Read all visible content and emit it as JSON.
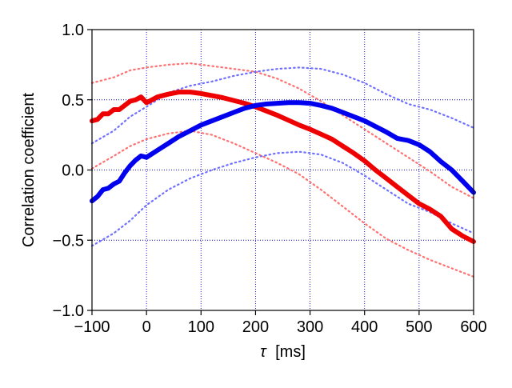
{
  "chart_data": {
    "type": "line",
    "xlabel_symbol": "τ",
    "xlabel_unit": "[ms]",
    "ylabel": "Correlation coefficient",
    "xlim": [
      -100,
      600
    ],
    "ylim": [
      -1.0,
      1.0
    ],
    "xticks": [
      -100,
      0,
      100,
      200,
      300,
      400,
      500,
      600
    ],
    "xtick_labels": [
      "−100",
      "0",
      "100",
      "200",
      "300",
      "400",
      "500",
      "600"
    ],
    "yticks": [
      -1.0,
      -0.5,
      0.0,
      0.5,
      1.0
    ],
    "ytick_labels": [
      "−1.0",
      "−0.5",
      "0.0",
      "0.5",
      "1.0"
    ],
    "grid": true,
    "grid_style": "dotted",
    "grid_color": "#0000cc",
    "legend": "none",
    "series": [
      {
        "color": "#ee0000",
        "style": "solid",
        "points": [
          [
            -100,
            0.35
          ],
          [
            -90,
            0.36
          ],
          [
            -80,
            0.4
          ],
          [
            -70,
            0.4
          ],
          [
            -60,
            0.43
          ],
          [
            -50,
            0.43
          ],
          [
            -40,
            0.46
          ],
          [
            -30,
            0.49
          ],
          [
            -20,
            0.5
          ],
          [
            -10,
            0.52
          ],
          [
            0,
            0.48
          ],
          [
            10,
            0.5
          ],
          [
            20,
            0.52
          ],
          [
            40,
            0.54
          ],
          [
            60,
            0.555
          ],
          [
            80,
            0.555
          ],
          [
            100,
            0.545
          ],
          [
            120,
            0.53
          ],
          [
            140,
            0.515
          ],
          [
            160,
            0.495
          ],
          [
            180,
            0.475
          ],
          [
            200,
            0.45
          ],
          [
            220,
            0.42
          ],
          [
            240,
            0.39
          ],
          [
            260,
            0.355
          ],
          [
            280,
            0.32
          ],
          [
            300,
            0.29
          ],
          [
            320,
            0.255
          ],
          [
            340,
            0.22
          ],
          [
            360,
            0.17
          ],
          [
            380,
            0.12
          ],
          [
            400,
            0.065
          ],
          [
            420,
            0.0
          ],
          [
            440,
            -0.06
          ],
          [
            460,
            -0.12
          ],
          [
            480,
            -0.18
          ],
          [
            500,
            -0.24
          ],
          [
            520,
            -0.28
          ],
          [
            540,
            -0.33
          ],
          [
            560,
            -0.42
          ],
          [
            580,
            -0.47
          ],
          [
            600,
            -0.51
          ]
        ]
      },
      {
        "color": "#0000ee",
        "style": "solid",
        "points": [
          [
            -100,
            -0.22
          ],
          [
            -90,
            -0.19
          ],
          [
            -80,
            -0.14
          ],
          [
            -70,
            -0.13
          ],
          [
            -60,
            -0.1
          ],
          [
            -50,
            -0.08
          ],
          [
            -40,
            -0.02
          ],
          [
            -30,
            0.03
          ],
          [
            -20,
            0.07
          ],
          [
            -10,
            0.1
          ],
          [
            0,
            0.09
          ],
          [
            20,
            0.14
          ],
          [
            40,
            0.19
          ],
          [
            60,
            0.24
          ],
          [
            80,
            0.28
          ],
          [
            100,
            0.32
          ],
          [
            120,
            0.35
          ],
          [
            140,
            0.38
          ],
          [
            160,
            0.41
          ],
          [
            180,
            0.44
          ],
          [
            200,
            0.46
          ],
          [
            220,
            0.47
          ],
          [
            240,
            0.475
          ],
          [
            260,
            0.48
          ],
          [
            280,
            0.48
          ],
          [
            300,
            0.475
          ],
          [
            320,
            0.46
          ],
          [
            340,
            0.44
          ],
          [
            360,
            0.41
          ],
          [
            380,
            0.38
          ],
          [
            400,
            0.35
          ],
          [
            420,
            0.31
          ],
          [
            440,
            0.27
          ],
          [
            460,
            0.225
          ],
          [
            480,
            0.21
          ],
          [
            500,
            0.18
          ],
          [
            520,
            0.13
          ],
          [
            540,
            0.06
          ],
          [
            560,
            0.0
          ],
          [
            580,
            -0.08
          ],
          [
            600,
            -0.16
          ]
        ]
      },
      {
        "color": "#ff7070",
        "style": "dotted",
        "points": [
          [
            -100,
            0.62
          ],
          [
            -60,
            0.66
          ],
          [
            -30,
            0.71
          ],
          [
            0,
            0.73
          ],
          [
            40,
            0.75
          ],
          [
            80,
            0.76
          ],
          [
            120,
            0.74
          ],
          [
            160,
            0.72
          ],
          [
            200,
            0.7
          ],
          [
            240,
            0.65
          ],
          [
            280,
            0.58
          ],
          [
            320,
            0.49
          ],
          [
            360,
            0.39
          ],
          [
            400,
            0.29
          ],
          [
            440,
            0.19
          ],
          [
            480,
            0.09
          ],
          [
            520,
            -0.01
          ],
          [
            560,
            -0.12
          ],
          [
            600,
            -0.2
          ]
        ]
      },
      {
        "color": "#ff7070",
        "style": "dotted",
        "points": [
          [
            -100,
            0.01
          ],
          [
            -60,
            0.1
          ],
          [
            -30,
            0.17
          ],
          [
            0,
            0.22
          ],
          [
            40,
            0.26
          ],
          [
            80,
            0.28
          ],
          [
            120,
            0.25
          ],
          [
            160,
            0.19
          ],
          [
            200,
            0.12
          ],
          [
            240,
            0.05
          ],
          [
            280,
            -0.03
          ],
          [
            320,
            -0.14
          ],
          [
            360,
            -0.26
          ],
          [
            400,
            -0.38
          ],
          [
            440,
            -0.49
          ],
          [
            480,
            -0.57
          ],
          [
            520,
            -0.64
          ],
          [
            560,
            -0.7
          ],
          [
            600,
            -0.76
          ]
        ]
      },
      {
        "color": "#7070ff",
        "style": "dotted",
        "points": [
          [
            -100,
            0.19
          ],
          [
            -60,
            0.28
          ],
          [
            -30,
            0.38
          ],
          [
            0,
            0.45
          ],
          [
            40,
            0.55
          ],
          [
            80,
            0.6
          ],
          [
            120,
            0.63
          ],
          [
            160,
            0.67
          ],
          [
            200,
            0.7
          ],
          [
            240,
            0.72
          ],
          [
            280,
            0.73
          ],
          [
            320,
            0.72
          ],
          [
            360,
            0.68
          ],
          [
            400,
            0.62
          ],
          [
            440,
            0.54
          ],
          [
            480,
            0.47
          ],
          [
            520,
            0.43
          ],
          [
            560,
            0.37
          ],
          [
            600,
            0.3
          ]
        ]
      },
      {
        "color": "#7070ff",
        "style": "dotted",
        "points": [
          [
            -100,
            -0.54
          ],
          [
            -60,
            -0.45
          ],
          [
            -30,
            -0.36
          ],
          [
            0,
            -0.25
          ],
          [
            40,
            -0.14
          ],
          [
            80,
            -0.06
          ],
          [
            120,
            0.0
          ],
          [
            160,
            0.05
          ],
          [
            200,
            0.09
          ],
          [
            240,
            0.12
          ],
          [
            280,
            0.13
          ],
          [
            320,
            0.11
          ],
          [
            360,
            0.05
          ],
          [
            400,
            -0.04
          ],
          [
            440,
            -0.14
          ],
          [
            480,
            -0.24
          ],
          [
            520,
            -0.3
          ],
          [
            560,
            -0.38
          ],
          [
            600,
            -0.45
          ]
        ]
      }
    ]
  }
}
